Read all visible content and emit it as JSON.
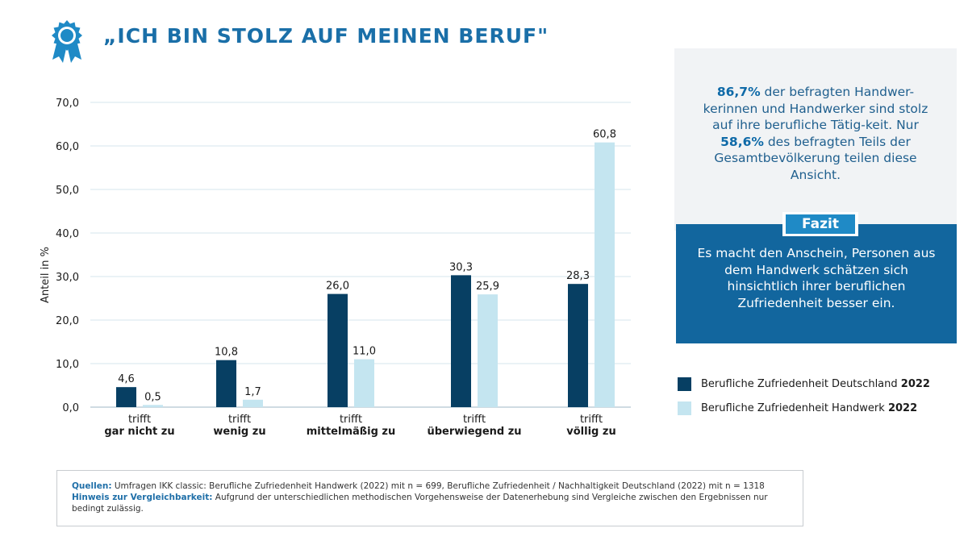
{
  "page": {
    "title": "„ICH BIN STOLZ AUF MEINEN BERUF\"",
    "icon": "award-rosette-icon",
    "accent_color": "#1a6fa8"
  },
  "info": {
    "pct1": "86,7%",
    "text1": " der befragten Handwer-kerinnen und Handwerker sind stolz auf ihre berufliche Tätig-keit. Nur ",
    "pct2": "58,6%",
    "text2": " des befragten Teils der Gesamtbevölkerung teilen diese Ansicht."
  },
  "fazit": {
    "label": "Fazit",
    "text": "Es macht den Anschein, Personen aus dem Handwerk schätzen sich hinsichtlich ihrer beruflichen Zufriedenheit besser ein."
  },
  "legend": {
    "items": [
      {
        "label": "Berufliche Zufriedenheit Deutschland ",
        "year": "2022",
        "color": "#073f63"
      },
      {
        "label": "Berufliche Zufriedenheit Handwerk ",
        "year": "2022",
        "color": "#c4e5f0"
      }
    ]
  },
  "source": {
    "label1": "Quellen:",
    "text1": " Umfragen IKK classic: Berufliche Zufriedenheit Handwerk (2022) mit n = 699, Berufliche Zufriedenheit / Nachhaltigkeit Deutschland (2022) mit n = 1318",
    "label2": "Hinweis zur Vergleichbarkeit:",
    "text2": " Aufgrund der unterschiedlichen methodischen Vorgehensweise der Datenerhebung sind Vergleiche zwischen den Ergebnissen nur bedingt zulässig."
  },
  "chart_data": {
    "type": "bar",
    "ylabel": "Anteil in %",
    "ylim": [
      0,
      70
    ],
    "yticks": [
      "0,0",
      "10,0",
      "20,0",
      "30,0",
      "40,0",
      "50,0",
      "60,0",
      "70,0"
    ],
    "grid": true,
    "categories": [
      {
        "line1": "trifft",
        "line2": "gar nicht zu"
      },
      {
        "line1": "trifft",
        "line2": "wenig zu"
      },
      {
        "line1": "trifft",
        "line2": "mittelmäßig zu"
      },
      {
        "line1": "trifft",
        "line2": "überwiegend zu"
      },
      {
        "line1": "trifft",
        "line2": "völlig zu"
      }
    ],
    "series": [
      {
        "name": "Berufliche Zufriedenheit Deutschland 2022",
        "color": "#073f63",
        "values": [
          4.6,
          10.8,
          26.0,
          30.3,
          28.3
        ],
        "labels": [
          "4,6",
          "10,8",
          "26,0",
          "30,3",
          "28,3"
        ]
      },
      {
        "name": "Berufliche Zufriedenheit Handwerk 2022",
        "color": "#c4e5f0",
        "values": [
          0.5,
          1.7,
          11.0,
          25.9,
          60.8
        ],
        "labels": [
          "0,5",
          "1,7",
          "11,0",
          "25,9",
          "60,8"
        ]
      }
    ]
  }
}
